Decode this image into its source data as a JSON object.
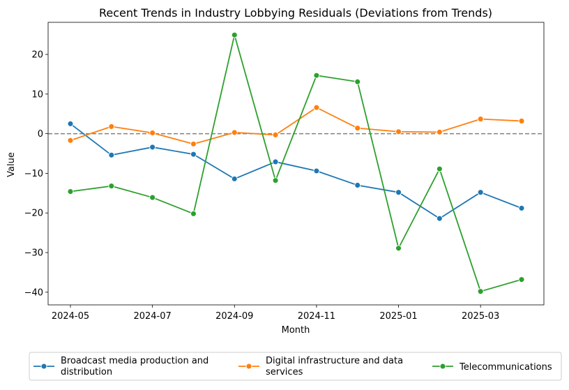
{
  "chart_data": {
    "type": "line",
    "title": "Recent Trends in Industry Lobbying Residuals (Deviations from Trends)",
    "xlabel": "Month",
    "ylabel": "Value",
    "x": [
      "2024-05",
      "2024-06",
      "2024-07",
      "2024-08",
      "2024-09",
      "2024-10",
      "2024-11",
      "2024-12",
      "2025-01",
      "2025-02",
      "2025-03",
      "2025-04"
    ],
    "xticks": [
      "2024-05",
      "2024-07",
      "2024-09",
      "2024-11",
      "2025-01",
      "2025-03"
    ],
    "yticks": [
      -40,
      -30,
      -20,
      -10,
      0,
      10,
      20
    ],
    "ylim": [
      -43.2,
      28.1
    ],
    "reference_line": {
      "y": 0,
      "style": "dashed",
      "color": "#808080"
    },
    "grid": false,
    "legend_position": "bottom-center",
    "series": [
      {
        "name": "Broadcast media production and distribution",
        "color": "#1f77b4",
        "values": [
          2.5,
          -5.4,
          -3.4,
          -5.2,
          -11.4,
          -7.1,
          -9.4,
          -13.0,
          -14.8,
          -21.4,
          -14.8,
          -18.8
        ]
      },
      {
        "name": "Digital infrastructure and data services",
        "color": "#ff7f0e",
        "values": [
          -1.7,
          1.8,
          0.2,
          -2.6,
          0.3,
          -0.3,
          6.6,
          1.4,
          0.5,
          0.4,
          3.7,
          3.2
        ]
      },
      {
        "name": "Telecommunications",
        "color": "#2ca02c",
        "values": [
          -14.6,
          -13.2,
          -16.1,
          -20.2,
          24.9,
          -11.8,
          14.7,
          13.1,
          -28.9,
          -8.9,
          -39.8,
          -36.8
        ]
      }
    ]
  }
}
